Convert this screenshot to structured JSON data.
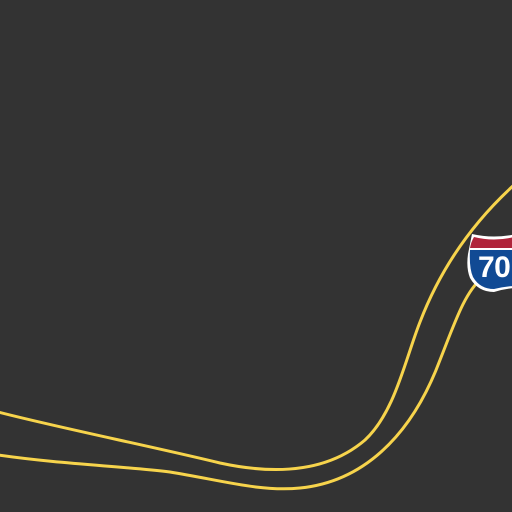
{
  "map": {
    "background_color": "#333333",
    "highway": {
      "route_number": "70",
      "shield_type": "interstate-shield-icon",
      "road_color": "#f7d44c",
      "shield_colors": {
        "top": "#b0243a",
        "body": "#114a94",
        "text": "#ffffff",
        "outline": "#ffffff"
      }
    }
  }
}
